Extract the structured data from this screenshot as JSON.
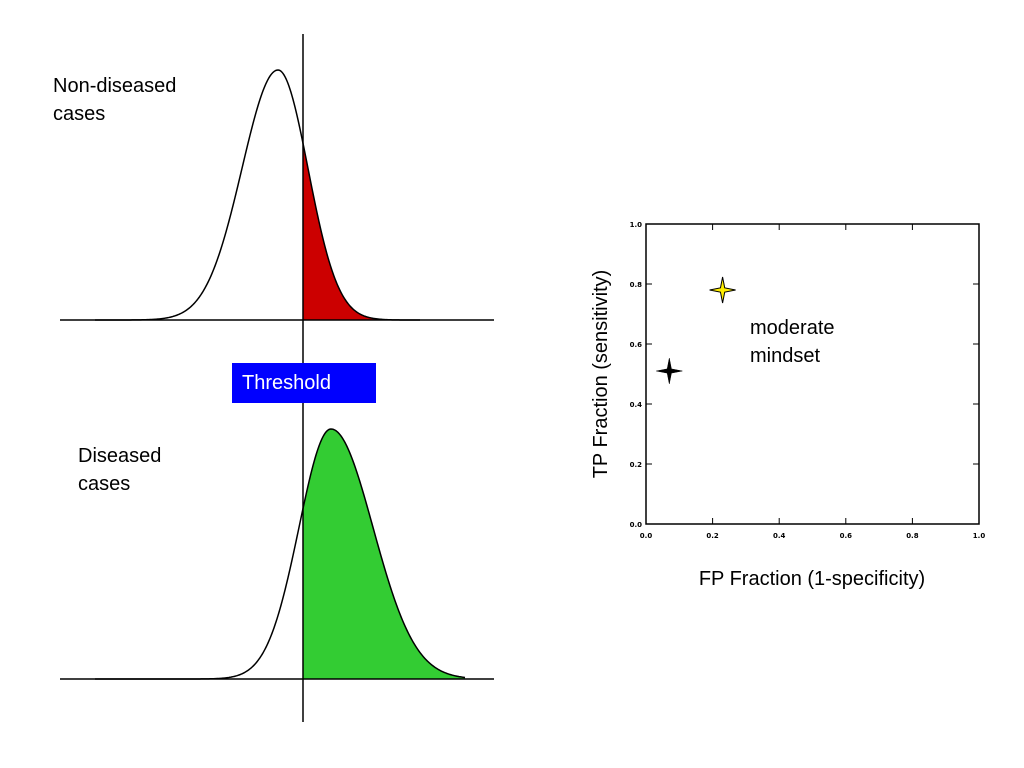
{
  "labels": {
    "non_diseased": "Non-diseased\ncases",
    "diseased": "Diseased\ncases",
    "threshold": "Threshold"
  },
  "colors": {
    "false_positive_fill": "#cc0000",
    "true_positive_fill": "#33cc33",
    "threshold_box": "#0000ff",
    "current_point": "#ffee00",
    "previous_point": "#000000"
  },
  "chart_data": {
    "type": "scatter",
    "xlabel": "FP Fraction (1-specificity)",
    "ylabel": "TP Fraction (sensitivity)",
    "xlim": [
      0.0,
      1.0
    ],
    "ylim": [
      0.0,
      1.0
    ],
    "xticks": [
      "0.0",
      "0.2",
      "0.4",
      "0.6",
      "0.8",
      "1.0"
    ],
    "yticks": [
      "0.0",
      "0.2",
      "0.4",
      "0.6",
      "0.8",
      "1.0"
    ],
    "grid": false,
    "points": [
      {
        "x": 0.07,
        "y": 0.51,
        "color": "#000000",
        "marker": "star"
      },
      {
        "x": 0.23,
        "y": 0.78,
        "color": "#ffee00",
        "marker": "star"
      }
    ],
    "annotation": "moderate\nmindset"
  }
}
